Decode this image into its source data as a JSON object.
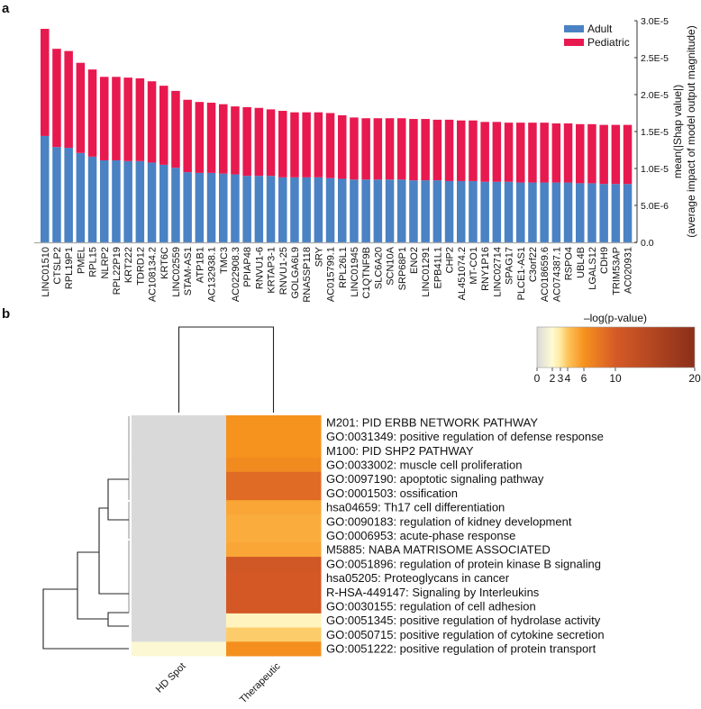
{
  "panel_labels": {
    "a": "a",
    "b": "b"
  },
  "chart_data": [
    {
      "type": "bar",
      "stacked": true,
      "title": "",
      "xlabel": "",
      "ylabel": "mean(|Shap value|)",
      "ylabel2": "(average impact of model output magnitude)",
      "ylim": [
        0,
        3e-05
      ],
      "yticks": [
        0,
        5e-06,
        1e-05,
        1.5e-05,
        2e-05,
        2.5e-05,
        3e-05
      ],
      "ytick_labels": [
        "0.0",
        "5.0E-6",
        "1.0E-5",
        "1.5E-5",
        "2.0E-5",
        "2.5E-5",
        "3.0E-5"
      ],
      "legend_position": "top-right",
      "categories": [
        "LINC01510",
        "CTSLP2",
        "RPL19P1",
        "PMEL",
        "RPL15",
        "NLRP2",
        "RPL22P19",
        "KRT222",
        "TDRD12",
        "AC108134.2",
        "KRT6C",
        "LINC02559",
        "STAM-AS1",
        "ATP1B1",
        "AC132938.1",
        "TMC3",
        "AC022908.3",
        "PPIAP48",
        "RNVU1-6",
        "KRTAP3-1",
        "RNVU1-25",
        "GOLGA6L9",
        "RNA5SP118",
        "SRY",
        "AC015799.1",
        "RPL26L1",
        "LINC01945",
        "C1QTNF9B",
        "SLC6A20",
        "SCN10A",
        "SRP68P1",
        "ENO2",
        "LINC01291",
        "EPB41L1",
        "CHP2",
        "AL451074.2",
        "MT-CO1",
        "RNY1P16",
        "LINC02714",
        "SPAG17",
        "PLCE1-AS1",
        "C3orf22",
        "AC018659.6",
        "AC074387.1",
        "RSPO4",
        "UBL4B",
        "LGALS12",
        "CDH9",
        "TRIM53AP",
        "AC020931"
      ],
      "series": [
        {
          "name": "Adult",
          "color": "#4a82c4",
          "values": [
            1.44e-05,
            1.29e-05,
            1.28e-05,
            1.21e-05,
            1.16e-05,
            1.11e-05,
            1.11e-05,
            1.1e-05,
            1.1e-05,
            1.08e-05,
            1.05e-05,
            1.01e-05,
            9.5e-06,
            9.4e-06,
            9.4e-06,
            9.3e-06,
            9.2e-06,
            9e-06,
            9e-06,
            9e-06,
            8.8e-06,
            8.8e-06,
            8.8e-06,
            8.8e-06,
            8.7e-06,
            8.6e-06,
            8.5e-06,
            8.5e-06,
            8.5e-06,
            8.5e-06,
            8.5e-06,
            8.4e-06,
            8.4e-06,
            8.4e-06,
            8.3e-06,
            8.3e-06,
            8.3e-06,
            8.2e-06,
            8.2e-06,
            8.2e-06,
            8.1e-06,
            8.1e-06,
            8.1e-06,
            8.1e-06,
            8.1e-06,
            8e-06,
            8e-06,
            7.9e-06,
            7.9e-06,
            7.9e-06
          ]
        },
        {
          "name": "Pediatric",
          "color": "#e8194f",
          "values": [
            1.45e-05,
            1.33e-05,
            1.31e-05,
            1.22e-05,
            1.18e-05,
            1.13e-05,
            1.13e-05,
            1.13e-05,
            1.12e-05,
            1.1e-05,
            1.07e-05,
            1.04e-05,
            9.8e-06,
            9.6e-06,
            9.5e-06,
            9.4e-06,
            9.2e-06,
            9.3e-06,
            9.2e-06,
            9e-06,
            9e-06,
            8.8e-06,
            8.8e-06,
            8.8e-06,
            8.8e-06,
            8.6e-06,
            8.4e-06,
            8.3e-06,
            8.3e-06,
            8.3e-06,
            8.3e-06,
            8.3e-06,
            8.3e-06,
            8.2e-06,
            8.3e-06,
            8.2e-06,
            8.2e-06,
            8.1e-06,
            8.1e-06,
            8e-06,
            8.1e-06,
            8.1e-06,
            8.1e-06,
            8e-06,
            8e-06,
            8e-06,
            8e-06,
            8e-06,
            8e-06,
            8e-06
          ]
        }
      ]
    },
    {
      "type": "heatmap",
      "colorbar_title": "–log(p-value)",
      "colorbar_ticks": [
        0,
        2,
        3,
        4,
        6,
        10,
        20
      ],
      "colorbar_tick_labels": [
        "0",
        "2",
        "3",
        "4",
        "6",
        "10",
        "20"
      ],
      "colorscale": [
        {
          "v": 0,
          "c": "#d9d9d9"
        },
        {
          "v": 2,
          "c": "#fffbd2"
        },
        {
          "v": 3,
          "c": "#fee9a0"
        },
        {
          "v": 4,
          "c": "#fdc55c"
        },
        {
          "v": 6,
          "c": "#f6921e"
        },
        {
          "v": 10,
          "c": "#d65a27"
        },
        {
          "v": 20,
          "c": "#8b2f1a"
        }
      ],
      "columns": [
        "HD Spot",
        "Therapeutic"
      ],
      "rows": [
        "M201: PID ERBB NETWORK PATHWAY",
        "GO:0031349: positive regulation of defense response",
        "M100: PID SHP2 PATHWAY",
        "GO:0033002: muscle cell proliferation",
        "GO:0097190: apoptotic signaling pathway",
        "GO:0001503: ossification",
        "hsa04659: Th17 cell differentiation",
        "GO:0090183: regulation of kidney development",
        "GO:0006953: acute-phase response",
        "M5885: NABA MATRISOME ASSOCIATED",
        "GO:0051896: regulation of protein kinase B signaling",
        "hsa05205: Proteoglycans in cancer",
        "R-HSA-449147: Signaling by Interleukins",
        "GO:0030155: regulation of cell adhesion",
        "GO:0051345: positive regulation of hydrolase activity",
        "GO:0050715: positive regulation of cytokine secretion",
        "GO:0051222: positive regulation of protein transport"
      ],
      "values": [
        [
          0,
          6.0
        ],
        [
          0,
          6.0
        ],
        [
          0,
          6.0
        ],
        [
          0,
          6.6
        ],
        [
          0,
          8.8
        ],
        [
          0,
          8.8
        ],
        [
          0,
          5.2
        ],
        [
          0,
          5.0
        ],
        [
          0,
          5.0
        ],
        [
          0,
          5.2
        ],
        [
          0,
          10.8
        ],
        [
          0,
          10.4
        ],
        [
          0,
          10.4
        ],
        [
          0,
          10.4
        ],
        [
          0,
          2.4
        ],
        [
          0,
          3.8
        ],
        [
          1.8,
          6.2
        ]
      ]
    }
  ]
}
